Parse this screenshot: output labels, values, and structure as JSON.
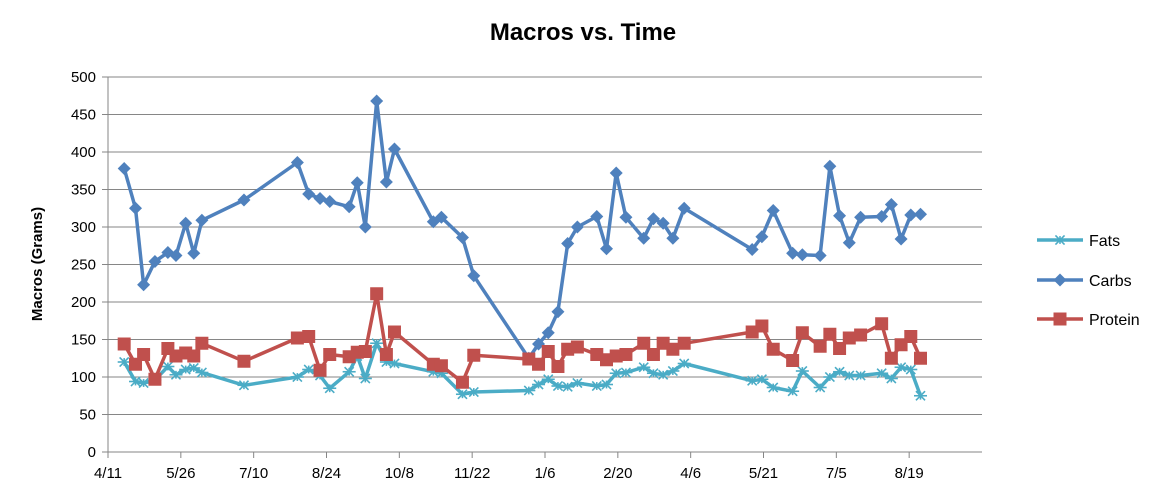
{
  "chart_data": {
    "type": "line",
    "title": "Macros vs. Time",
    "ylabel": "Macros (Grams)",
    "xlabel": "",
    "ylim": [
      0,
      500
    ],
    "yticks": [
      0,
      50,
      100,
      150,
      200,
      250,
      300,
      350,
      400,
      450,
      500
    ],
    "xticks": [
      {
        "label": "4/11",
        "x": 0
      },
      {
        "label": "5/26",
        "x": 45
      },
      {
        "label": "7/10",
        "x": 90
      },
      {
        "label": "8/24",
        "x": 135
      },
      {
        "label": "10/8",
        "x": 180
      },
      {
        "label": "11/22",
        "x": 225
      },
      {
        "label": "1/6",
        "x": 270
      },
      {
        "label": "2/20",
        "x": 315
      },
      {
        "label": "4/6",
        "x": 360
      },
      {
        "label": "5/21",
        "x": 405
      },
      {
        "label": "7/5",
        "x": 450
      },
      {
        "label": "8/19",
        "x": 495
      }
    ],
    "xlim": [
      0,
      540
    ],
    "grid": true,
    "legend_position": "right",
    "series": [
      {
        "name": "Fats",
        "color": "#4bacc6",
        "marker": "asterisk",
        "points": [
          [
            10,
            120
          ],
          [
            17,
            94
          ],
          [
            22,
            92
          ],
          [
            29,
            96
          ],
          [
            37,
            114
          ],
          [
            42,
            103
          ],
          [
            48,
            110
          ],
          [
            53,
            112
          ],
          [
            58,
            106
          ],
          [
            84,
            89
          ],
          [
            117,
            100
          ],
          [
            124,
            110
          ],
          [
            131,
            102
          ],
          [
            137,
            85
          ],
          [
            149,
            107
          ],
          [
            154,
            128
          ],
          [
            159,
            98
          ],
          [
            166,
            145
          ],
          [
            172,
            120
          ],
          [
            177,
            118
          ],
          [
            201,
            107
          ],
          [
            206,
            105
          ],
          [
            219,
            77
          ],
          [
            226,
            80
          ],
          [
            260,
            82
          ],
          [
            266,
            90
          ],
          [
            272,
            97
          ],
          [
            278,
            88
          ],
          [
            284,
            87
          ],
          [
            290,
            92
          ],
          [
            302,
            88
          ],
          [
            308,
            90
          ],
          [
            314,
            105
          ],
          [
            320,
            106
          ],
          [
            331,
            113
          ],
          [
            337,
            105
          ],
          [
            343,
            103
          ],
          [
            349,
            108
          ],
          [
            356,
            118
          ],
          [
            398,
            95
          ],
          [
            404,
            97
          ],
          [
            411,
            86
          ],
          [
            423,
            81
          ],
          [
            429,
            108
          ],
          [
            440,
            86
          ],
          [
            446,
            100
          ],
          [
            452,
            107
          ],
          [
            458,
            102
          ],
          [
            465,
            102
          ],
          [
            478,
            105
          ],
          [
            484,
            98
          ],
          [
            490,
            113
          ],
          [
            496,
            110
          ],
          [
            502,
            75
          ]
        ]
      },
      {
        "name": "Carbs",
        "color": "#4f81bd",
        "marker": "diamond",
        "points": [
          [
            10,
            378
          ],
          [
            17,
            325
          ],
          [
            22,
            223
          ],
          [
            29,
            254
          ],
          [
            37,
            266
          ],
          [
            42,
            262
          ],
          [
            48,
            305
          ],
          [
            53,
            265
          ],
          [
            58,
            309
          ],
          [
            84,
            336
          ],
          [
            117,
            386
          ],
          [
            124,
            344
          ],
          [
            131,
            338
          ],
          [
            137,
            334
          ],
          [
            149,
            327
          ],
          [
            154,
            359
          ],
          [
            159,
            300
          ],
          [
            166,
            468
          ],
          [
            172,
            360
          ],
          [
            177,
            404
          ],
          [
            201,
            307
          ],
          [
            206,
            313
          ],
          [
            219,
            286
          ],
          [
            226,
            235
          ],
          [
            260,
            125
          ],
          [
            266,
            144
          ],
          [
            272,
            159
          ],
          [
            278,
            187
          ],
          [
            284,
            278
          ],
          [
            290,
            300
          ],
          [
            302,
            314
          ],
          [
            308,
            271
          ],
          [
            314,
            372
          ],
          [
            320,
            313
          ],
          [
            331,
            285
          ],
          [
            337,
            311
          ],
          [
            343,
            305
          ],
          [
            349,
            285
          ],
          [
            356,
            325
          ],
          [
            398,
            270
          ],
          [
            404,
            287
          ],
          [
            411,
            322
          ],
          [
            423,
            265
          ],
          [
            429,
            263
          ],
          [
            440,
            262
          ],
          [
            446,
            381
          ],
          [
            452,
            315
          ],
          [
            458,
            279
          ],
          [
            465,
            313
          ],
          [
            478,
            314
          ],
          [
            484,
            330
          ],
          [
            490,
            284
          ],
          [
            496,
            316
          ],
          [
            502,
            317
          ]
        ]
      },
      {
        "name": "Protein",
        "color": "#c0504d",
        "marker": "square",
        "points": [
          [
            10,
            144
          ],
          [
            17,
            117
          ],
          [
            22,
            130
          ],
          [
            29,
            97
          ],
          [
            37,
            138
          ],
          [
            42,
            128
          ],
          [
            48,
            132
          ],
          [
            53,
            128
          ],
          [
            58,
            145
          ],
          [
            84,
            121
          ],
          [
            117,
            152
          ],
          [
            124,
            154
          ],
          [
            131,
            109
          ],
          [
            137,
            130
          ],
          [
            149,
            127
          ],
          [
            154,
            133
          ],
          [
            159,
            134
          ],
          [
            166,
            211
          ],
          [
            172,
            130
          ],
          [
            177,
            160
          ],
          [
            201,
            117
          ],
          [
            206,
            115
          ],
          [
            219,
            93
          ],
          [
            226,
            129
          ],
          [
            260,
            124
          ],
          [
            266,
            117
          ],
          [
            272,
            134
          ],
          [
            278,
            114
          ],
          [
            284,
            137
          ],
          [
            290,
            140
          ],
          [
            302,
            130
          ],
          [
            308,
            123
          ],
          [
            314,
            128
          ],
          [
            320,
            130
          ],
          [
            331,
            145
          ],
          [
            337,
            130
          ],
          [
            343,
            145
          ],
          [
            349,
            137
          ],
          [
            356,
            145
          ],
          [
            398,
            160
          ],
          [
            404,
            168
          ],
          [
            411,
            137
          ],
          [
            423,
            122
          ],
          [
            429,
            159
          ],
          [
            440,
            141
          ],
          [
            446,
            157
          ],
          [
            452,
            138
          ],
          [
            458,
            152
          ],
          [
            465,
            156
          ],
          [
            478,
            171
          ],
          [
            484,
            125
          ],
          [
            490,
            143
          ],
          [
            496,
            154
          ],
          [
            502,
            125
          ]
        ]
      }
    ]
  }
}
